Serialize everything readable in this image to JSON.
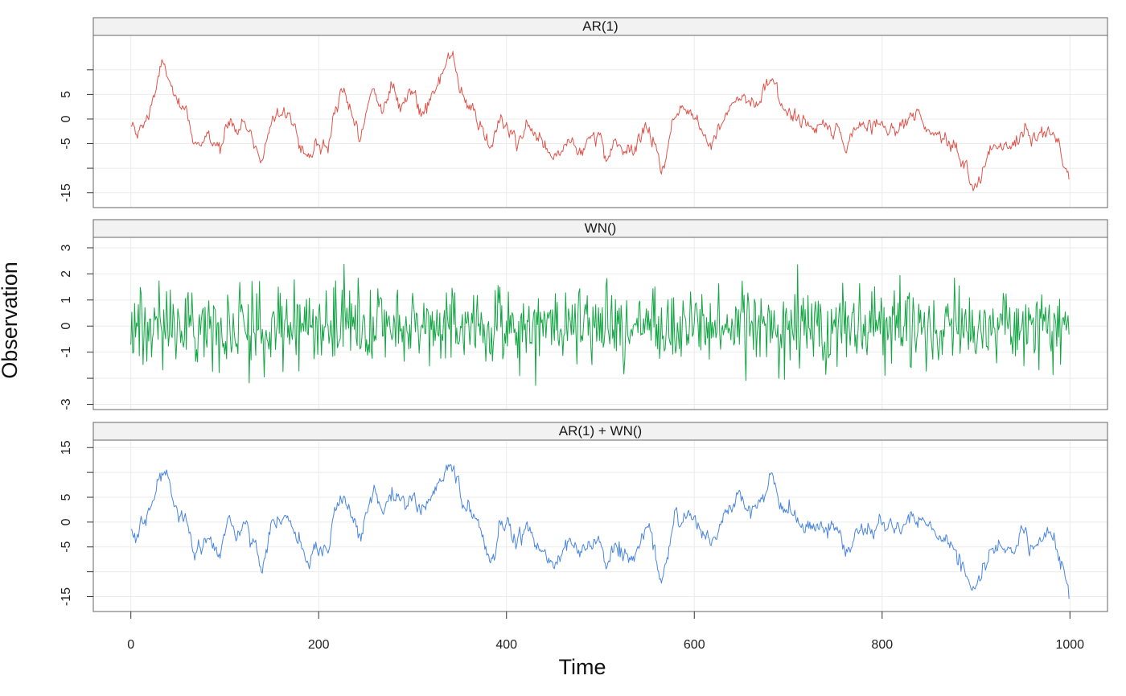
{
  "chart_data": {
    "type": "line",
    "xlabel": "Time",
    "ylabel": "Observation",
    "xlim": [
      -40,
      1040
    ],
    "x_ticks": [
      0,
      200,
      400,
      600,
      800,
      1000
    ],
    "x_tick_labels": [
      "0",
      "200",
      "400",
      "600",
      "800",
      "1000"
    ],
    "grid": true,
    "n_points": 1000,
    "panels": [
      {
        "title": "AR(1)",
        "color": "#E0534A",
        "ylim": [
          -18,
          17
        ],
        "y_ticks": [
          -15,
          -10,
          -5,
          0,
          5,
          10
        ],
        "y_tick_labels": [
          "-15",
          "",
          "-5",
          "0",
          "5",
          ""
        ],
        "keypoints": [
          [
            0,
            -1
          ],
          [
            5,
            -3.5
          ],
          [
            15,
            -1
          ],
          [
            25,
            5
          ],
          [
            33,
            11
          ],
          [
            40,
            9
          ],
          [
            50,
            2
          ],
          [
            60,
            1
          ],
          [
            68,
            -5
          ],
          [
            80,
            -4
          ],
          [
            95,
            -6
          ],
          [
            103,
            1
          ],
          [
            112,
            -2
          ],
          [
            122,
            -1
          ],
          [
            133,
            -6
          ],
          [
            140,
            -8
          ],
          [
            150,
            0
          ],
          [
            158,
            3
          ],
          [
            170,
            0
          ],
          [
            178,
            -4
          ],
          [
            190,
            -8
          ],
          [
            197,
            -5
          ],
          [
            210,
            -6
          ],
          [
            215,
            1
          ],
          [
            225,
            5
          ],
          [
            232,
            3
          ],
          [
            245,
            -3
          ],
          [
            258,
            6
          ],
          [
            268,
            2
          ],
          [
            278,
            6
          ],
          [
            290,
            3
          ],
          [
            300,
            6
          ],
          [
            310,
            2
          ],
          [
            325,
            6
          ],
          [
            338,
            12
          ],
          [
            345,
            11
          ],
          [
            355,
            3
          ],
          [
            370,
            0
          ],
          [
            383,
            -7
          ],
          [
            393,
            -1
          ],
          [
            400,
            -1
          ],
          [
            410,
            -4
          ],
          [
            422,
            -2
          ],
          [
            435,
            -4
          ],
          [
            448,
            -8
          ],
          [
            460,
            -6
          ],
          [
            470,
            -4
          ],
          [
            480,
            -7
          ],
          [
            488,
            -4
          ],
          [
            500,
            -4
          ],
          [
            505,
            -9
          ],
          [
            515,
            -5
          ],
          [
            525,
            -7
          ],
          [
            537,
            -6
          ],
          [
            550,
            -1
          ],
          [
            558,
            -5
          ],
          [
            565,
            -11
          ],
          [
            572,
            -6
          ],
          [
            580,
            2
          ],
          [
            590,
            2
          ],
          [
            605,
            -1
          ],
          [
            618,
            -5
          ],
          [
            627,
            -1
          ],
          [
            638,
            3
          ],
          [
            648,
            5
          ],
          [
            660,
            3
          ],
          [
            670,
            4
          ],
          [
            683,
            9
          ],
          [
            693,
            2
          ],
          [
            703,
            2
          ],
          [
            712,
            -1
          ],
          [
            725,
            -1
          ],
          [
            740,
            -2
          ],
          [
            752,
            -1
          ],
          [
            762,
            -7
          ],
          [
            775,
            -1
          ],
          [
            788,
            -1
          ],
          [
            800,
            -1
          ],
          [
            812,
            -2
          ],
          [
            830,
            1
          ],
          [
            840,
            0
          ],
          [
            850,
            -2
          ],
          [
            862,
            -3
          ],
          [
            875,
            -6
          ],
          [
            885,
            -8
          ],
          [
            898,
            -15
          ],
          [
            908,
            -10
          ],
          [
            916,
            -6
          ],
          [
            928,
            -6
          ],
          [
            940,
            -5
          ],
          [
            953,
            -1
          ],
          [
            960,
            -5
          ],
          [
            970,
            -3
          ],
          [
            980,
            -2
          ],
          [
            988,
            -6
          ],
          [
            992,
            -9
          ],
          [
            1000,
            -13
          ]
        ],
        "roughness": 1.3
      },
      {
        "title": "WN()",
        "color": "#12A643",
        "ylim": [
          -3.2,
          3.4
        ],
        "y_ticks": [
          -3,
          -2,
          -1,
          0,
          1,
          2,
          3
        ],
        "y_tick_labels": [
          "-3",
          "",
          "-1",
          "0",
          "1",
          "2",
          "3"
        ],
        "keypoints": [
          [
            0,
            0
          ],
          [
            1000,
            0
          ]
        ],
        "noise_sd": 0.75,
        "noise_max": 2.9
      },
      {
        "title": "AR(1) + WN()",
        "color": "#4A86E0",
        "ylim": [
          -18,
          16.5
        ],
        "y_ticks": [
          -15,
          -10,
          -5,
          0,
          5,
          10,
          15
        ],
        "y_tick_labels": [
          "-15",
          "",
          "-5",
          "0",
          "5",
          "",
          "15"
        ],
        "keypoints": [
          [
            0,
            -1
          ],
          [
            5,
            -4
          ],
          [
            15,
            -1
          ],
          [
            25,
            5
          ],
          [
            33,
            11
          ],
          [
            40,
            9
          ],
          [
            50,
            2
          ],
          [
            60,
            1
          ],
          [
            68,
            -6
          ],
          [
            80,
            -4
          ],
          [
            95,
            -6
          ],
          [
            103,
            1
          ],
          [
            112,
            -2
          ],
          [
            122,
            -1
          ],
          [
            133,
            -6
          ],
          [
            140,
            -9
          ],
          [
            150,
            0
          ],
          [
            158,
            2
          ],
          [
            170,
            0
          ],
          [
            178,
            -4
          ],
          [
            190,
            -8
          ],
          [
            197,
            -5
          ],
          [
            210,
            -6
          ],
          [
            215,
            1
          ],
          [
            225,
            5
          ],
          [
            232,
            3
          ],
          [
            245,
            -3
          ],
          [
            258,
            6
          ],
          [
            268,
            2
          ],
          [
            278,
            6
          ],
          [
            290,
            3
          ],
          [
            300,
            6
          ],
          [
            310,
            2
          ],
          [
            325,
            6
          ],
          [
            338,
            12
          ],
          [
            345,
            11
          ],
          [
            355,
            3
          ],
          [
            370,
            0
          ],
          [
            383,
            -9
          ],
          [
            393,
            -1
          ],
          [
            400,
            -1
          ],
          [
            410,
            -4
          ],
          [
            422,
            -2
          ],
          [
            435,
            -4
          ],
          [
            448,
            -8
          ],
          [
            460,
            -6
          ],
          [
            470,
            -4
          ],
          [
            480,
            -7
          ],
          [
            488,
            -4
          ],
          [
            500,
            -4
          ],
          [
            505,
            -9
          ],
          [
            515,
            -5
          ],
          [
            525,
            -7
          ],
          [
            537,
            -6
          ],
          [
            550,
            -1
          ],
          [
            558,
            -5
          ],
          [
            565,
            -12
          ],
          [
            572,
            -6
          ],
          [
            580,
            2
          ],
          [
            590,
            2
          ],
          [
            605,
            -1
          ],
          [
            618,
            -5
          ],
          [
            627,
            -1
          ],
          [
            638,
            3
          ],
          [
            648,
            5
          ],
          [
            660,
            3
          ],
          [
            670,
            4
          ],
          [
            683,
            9
          ],
          [
            693,
            2
          ],
          [
            703,
            2
          ],
          [
            712,
            -1
          ],
          [
            725,
            -1
          ],
          [
            740,
            -2
          ],
          [
            752,
            -1
          ],
          [
            762,
            -7
          ],
          [
            775,
            -1
          ],
          [
            788,
            -1
          ],
          [
            800,
            -1
          ],
          [
            812,
            -2
          ],
          [
            830,
            1
          ],
          [
            840,
            0
          ],
          [
            850,
            -2
          ],
          [
            862,
            -3
          ],
          [
            875,
            -6
          ],
          [
            885,
            -8
          ],
          [
            898,
            -15
          ],
          [
            908,
            -10
          ],
          [
            916,
            -6
          ],
          [
            928,
            -6
          ],
          [
            940,
            -5
          ],
          [
            953,
            -1
          ],
          [
            960,
            -5
          ],
          [
            970,
            -3
          ],
          [
            980,
            -2
          ],
          [
            988,
            -6
          ],
          [
            992,
            -9
          ],
          [
            1000,
            -15
          ]
        ],
        "roughness": 1.5
      }
    ]
  }
}
